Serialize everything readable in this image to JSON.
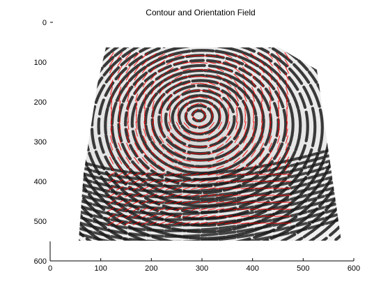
{
  "figure": {
    "title": "Contour and Orientation Field",
    "image_description_icon": "fingerprint-image",
    "ridge_color": "#1a1a1a",
    "orientation_color": "#ff0000",
    "axes": {
      "x_range": [
        0,
        600
      ],
      "y_range": [
        0,
        600
      ],
      "y_reversed": true,
      "x_ticks": [
        "0",
        "100",
        "200",
        "300",
        "400",
        "500",
        "600"
      ],
      "y_ticks": [
        "0",
        "100",
        "200",
        "300",
        "400",
        "500",
        "600"
      ]
    }
  }
}
